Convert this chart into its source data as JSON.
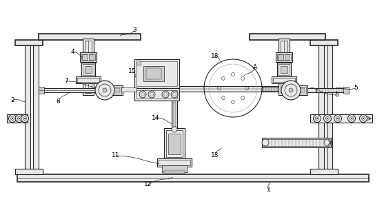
{
  "bg_color": "#ffffff",
  "lc": "#404040",
  "dc": "#222222",
  "fc": "#cccccc",
  "fl": "#e8e8e8",
  "lg": "#aaaaaa",
  "fig_width": 5.57,
  "fig_height": 2.86,
  "dpi": 100
}
